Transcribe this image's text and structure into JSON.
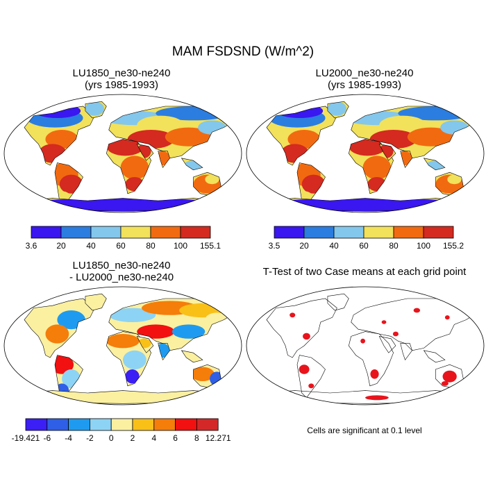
{
  "title": "MAM FSDSND (W/m^2)",
  "colors": {
    "land_ocean": "#ffffff",
    "outline": "#000000",
    "significant": "#e8141c"
  },
  "panels": [
    {
      "id": "lu1850",
      "title_line1": "LU1850_ne30-ne240",
      "title_line2": "(yrs 1985-1993)",
      "colorbar": {
        "labels": [
          "3.6",
          "20",
          "40",
          "60",
          "80",
          "100",
          "155.1"
        ],
        "colors": [
          "#3a16f0",
          "#2b7de0",
          "#83c7ec",
          "#f2e15a",
          "#f26a10",
          "#d42a20"
        ]
      }
    },
    {
      "id": "lu2000",
      "title_line1": "LU2000_ne30-ne240",
      "title_line2": "(yrs 1985-1993)",
      "colorbar": {
        "labels": [
          "3.5",
          "20",
          "40",
          "60",
          "80",
          "100",
          "155.2"
        ],
        "colors": [
          "#3a16f0",
          "#2b7de0",
          "#83c7ec",
          "#f2e15a",
          "#f26a10",
          "#d42a20"
        ]
      }
    },
    {
      "id": "diff",
      "title_line1": "LU1850_ne30-ne240",
      "title_line2": "- LU2000_ne30-ne240",
      "colorbar": {
        "labels": [
          "-19.421",
          "-6",
          "-4",
          "-2",
          "0",
          "2",
          "4",
          "6",
          "8",
          "12.271"
        ],
        "colors": [
          "#3b1ff5",
          "#2f5fe6",
          "#1e9bf0",
          "#8dd3f5",
          "#fbf0a0",
          "#f9c018",
          "#f57d0a",
          "#f21010",
          "#d42828"
        ]
      }
    },
    {
      "id": "ttest",
      "title_line1": "T-Test of two Case means at each grid point",
      "note": "Cells are significant at 0.1 level"
    }
  ]
}
